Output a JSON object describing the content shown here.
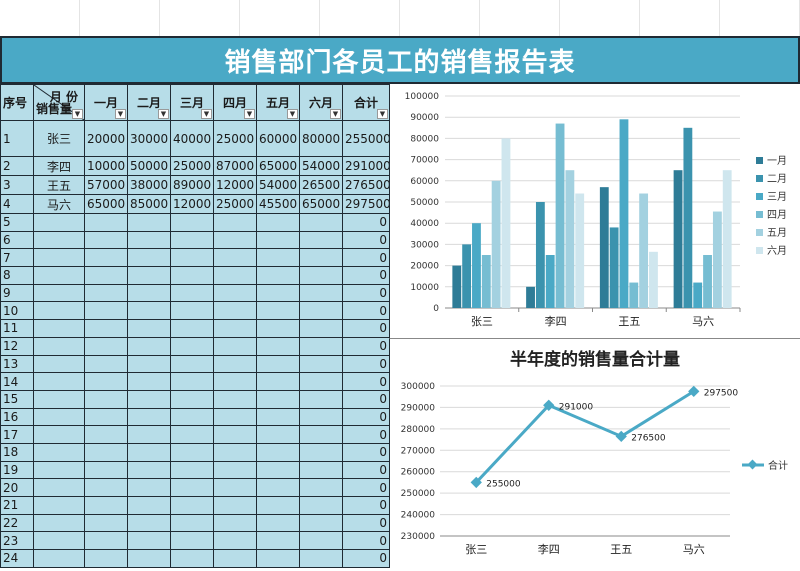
{
  "title": "销售部门各员工的销售报告表",
  "table": {
    "headers": {
      "no": "序号",
      "month_top": "月 份",
      "month_bottom": "销售量",
      "months": [
        "一月",
        "二月",
        "三月",
        "四月",
        "五月",
        "六月"
      ],
      "total": "合计"
    },
    "rows": [
      {
        "no": "1",
        "name": "张三",
        "vals": [
          "20000",
          "30000",
          "40000",
          "25000",
          "60000",
          "80000"
        ],
        "total": "255000"
      },
      {
        "no": "2",
        "name": "李四",
        "vals": [
          "10000",
          "50000",
          "25000",
          "87000",
          "65000",
          "54000"
        ],
        "total": "291000"
      },
      {
        "no": "3",
        "name": "王五",
        "vals": [
          "57000",
          "38000",
          "89000",
          "12000",
          "54000",
          "26500"
        ],
        "total": "276500"
      },
      {
        "no": "4",
        "name": "马六",
        "vals": [
          "65000",
          "85000",
          "12000",
          "25000",
          "45500",
          "65000"
        ],
        "total": "297500"
      },
      {
        "no": "5",
        "name": "",
        "vals": [
          "",
          "",
          "",
          "",
          "",
          ""
        ],
        "total": "0"
      },
      {
        "no": "6",
        "name": "",
        "vals": [
          "",
          "",
          "",
          "",
          "",
          ""
        ],
        "total": "0"
      },
      {
        "no": "7",
        "name": "",
        "vals": [
          "",
          "",
          "",
          "",
          "",
          ""
        ],
        "total": "0"
      },
      {
        "no": "8",
        "name": "",
        "vals": [
          "",
          "",
          "",
          "",
          "",
          ""
        ],
        "total": "0"
      },
      {
        "no": "9",
        "name": "",
        "vals": [
          "",
          "",
          "",
          "",
          "",
          ""
        ],
        "total": "0"
      },
      {
        "no": "10",
        "name": "",
        "vals": [
          "",
          "",
          "",
          "",
          "",
          ""
        ],
        "total": "0"
      },
      {
        "no": "11",
        "name": "",
        "vals": [
          "",
          "",
          "",
          "",
          "",
          ""
        ],
        "total": "0"
      },
      {
        "no": "12",
        "name": "",
        "vals": [
          "",
          "",
          "",
          "",
          "",
          ""
        ],
        "total": "0"
      },
      {
        "no": "13",
        "name": "",
        "vals": [
          "",
          "",
          "",
          "",
          "",
          ""
        ],
        "total": "0"
      },
      {
        "no": "14",
        "name": "",
        "vals": [
          "",
          "",
          "",
          "",
          "",
          ""
        ],
        "total": "0"
      },
      {
        "no": "15",
        "name": "",
        "vals": [
          "",
          "",
          "",
          "",
          "",
          ""
        ],
        "total": "0"
      },
      {
        "no": "16",
        "name": "",
        "vals": [
          "",
          "",
          "",
          "",
          "",
          ""
        ],
        "total": "0"
      },
      {
        "no": "17",
        "name": "",
        "vals": [
          "",
          "",
          "",
          "",
          "",
          ""
        ],
        "total": "0"
      },
      {
        "no": "18",
        "name": "",
        "vals": [
          "",
          "",
          "",
          "",
          "",
          ""
        ],
        "total": "0"
      },
      {
        "no": "19",
        "name": "",
        "vals": [
          "",
          "",
          "",
          "",
          "",
          ""
        ],
        "total": "0"
      },
      {
        "no": "20",
        "name": "",
        "vals": [
          "",
          "",
          "",
          "",
          "",
          ""
        ],
        "total": "0"
      },
      {
        "no": "21",
        "name": "",
        "vals": [
          "",
          "",
          "",
          "",
          "",
          ""
        ],
        "total": "0"
      },
      {
        "no": "22",
        "name": "",
        "vals": [
          "",
          "",
          "",
          "",
          "",
          ""
        ],
        "total": "0"
      },
      {
        "no": "23",
        "name": "",
        "vals": [
          "",
          "",
          "",
          "",
          "",
          ""
        ],
        "total": "0"
      },
      {
        "no": "24",
        "name": "",
        "vals": [
          "",
          "",
          "",
          "",
          "",
          ""
        ],
        "total": "0"
      }
    ]
  },
  "colors": {
    "title_bg": "#4aa9c6",
    "table_bg": "#b7dde8",
    "series": [
      "#2e7c97",
      "#3b93ae",
      "#4aa9c6",
      "#76bdd2",
      "#a3d1e0",
      "#cfe6ee"
    ],
    "line": "#4aa9c6"
  },
  "chart_data": [
    {
      "type": "bar",
      "categories": [
        "张三",
        "李四",
        "王五",
        "马六"
      ],
      "series": [
        {
          "name": "一月",
          "values": [
            20000,
            10000,
            57000,
            65000
          ]
        },
        {
          "name": "二月",
          "values": [
            30000,
            50000,
            38000,
            85000
          ]
        },
        {
          "name": "三月",
          "values": [
            40000,
            25000,
            89000,
            12000
          ]
        },
        {
          "name": "四月",
          "values": [
            25000,
            87000,
            12000,
            25000
          ]
        },
        {
          "name": "五月",
          "values": [
            60000,
            65000,
            54000,
            45500
          ]
        },
        {
          "name": "六月",
          "values": [
            80000,
            54000,
            26500,
            65000
          ]
        }
      ],
      "ylim": [
        0,
        100000
      ],
      "yticks": [
        "0",
        "10000",
        "20000",
        "30000",
        "40000",
        "50000",
        "60000",
        "70000",
        "80000",
        "90000",
        "100000"
      ],
      "grid": true,
      "legend": "right"
    },
    {
      "type": "line",
      "title": "半年度的销售量合计量",
      "categories": [
        "张三",
        "李四",
        "王五",
        "马六"
      ],
      "series": [
        {
          "name": "合计",
          "values": [
            255000,
            291000,
            276500,
            297500
          ]
        }
      ],
      "data_labels": [
        "255000",
        "291000",
        "276500",
        "297500"
      ],
      "ylim": [
        230000,
        300000
      ],
      "yticks": [
        "230000",
        "240000",
        "250000",
        "260000",
        "270000",
        "280000",
        "290000",
        "300000"
      ],
      "grid": true,
      "legend": "right"
    }
  ]
}
